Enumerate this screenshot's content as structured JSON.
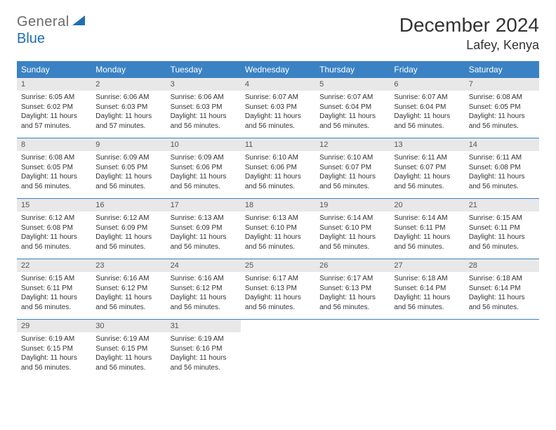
{
  "brand": {
    "name_gray": "General",
    "name_blue": "Blue"
  },
  "title": "December 2024",
  "location": "Lafey, Kenya",
  "colors": {
    "header_bg": "#3b82c4",
    "header_text": "#ffffff",
    "daynum_bg": "#e8e8e8",
    "row_divider": "#3b82c4",
    "body_text": "#333333",
    "logo_gray": "#6a6a6a",
    "logo_blue": "#1f6fb2"
  },
  "weekdays": [
    "Sunday",
    "Monday",
    "Tuesday",
    "Wednesday",
    "Thursday",
    "Friday",
    "Saturday"
  ],
  "weeks": [
    [
      {
        "n": "1",
        "sr": "Sunrise: 6:05 AM",
        "ss": "Sunset: 6:02 PM",
        "dl": "Daylight: 11 hours and 57 minutes."
      },
      {
        "n": "2",
        "sr": "Sunrise: 6:06 AM",
        "ss": "Sunset: 6:03 PM",
        "dl": "Daylight: 11 hours and 57 minutes."
      },
      {
        "n": "3",
        "sr": "Sunrise: 6:06 AM",
        "ss": "Sunset: 6:03 PM",
        "dl": "Daylight: 11 hours and 56 minutes."
      },
      {
        "n": "4",
        "sr": "Sunrise: 6:07 AM",
        "ss": "Sunset: 6:03 PM",
        "dl": "Daylight: 11 hours and 56 minutes."
      },
      {
        "n": "5",
        "sr": "Sunrise: 6:07 AM",
        "ss": "Sunset: 6:04 PM",
        "dl": "Daylight: 11 hours and 56 minutes."
      },
      {
        "n": "6",
        "sr": "Sunrise: 6:07 AM",
        "ss": "Sunset: 6:04 PM",
        "dl": "Daylight: 11 hours and 56 minutes."
      },
      {
        "n": "7",
        "sr": "Sunrise: 6:08 AM",
        "ss": "Sunset: 6:05 PM",
        "dl": "Daylight: 11 hours and 56 minutes."
      }
    ],
    [
      {
        "n": "8",
        "sr": "Sunrise: 6:08 AM",
        "ss": "Sunset: 6:05 PM",
        "dl": "Daylight: 11 hours and 56 minutes."
      },
      {
        "n": "9",
        "sr": "Sunrise: 6:09 AM",
        "ss": "Sunset: 6:05 PM",
        "dl": "Daylight: 11 hours and 56 minutes."
      },
      {
        "n": "10",
        "sr": "Sunrise: 6:09 AM",
        "ss": "Sunset: 6:06 PM",
        "dl": "Daylight: 11 hours and 56 minutes."
      },
      {
        "n": "11",
        "sr": "Sunrise: 6:10 AM",
        "ss": "Sunset: 6:06 PM",
        "dl": "Daylight: 11 hours and 56 minutes."
      },
      {
        "n": "12",
        "sr": "Sunrise: 6:10 AM",
        "ss": "Sunset: 6:07 PM",
        "dl": "Daylight: 11 hours and 56 minutes."
      },
      {
        "n": "13",
        "sr": "Sunrise: 6:11 AM",
        "ss": "Sunset: 6:07 PM",
        "dl": "Daylight: 11 hours and 56 minutes."
      },
      {
        "n": "14",
        "sr": "Sunrise: 6:11 AM",
        "ss": "Sunset: 6:08 PM",
        "dl": "Daylight: 11 hours and 56 minutes."
      }
    ],
    [
      {
        "n": "15",
        "sr": "Sunrise: 6:12 AM",
        "ss": "Sunset: 6:08 PM",
        "dl": "Daylight: 11 hours and 56 minutes."
      },
      {
        "n": "16",
        "sr": "Sunrise: 6:12 AM",
        "ss": "Sunset: 6:09 PM",
        "dl": "Daylight: 11 hours and 56 minutes."
      },
      {
        "n": "17",
        "sr": "Sunrise: 6:13 AM",
        "ss": "Sunset: 6:09 PM",
        "dl": "Daylight: 11 hours and 56 minutes."
      },
      {
        "n": "18",
        "sr": "Sunrise: 6:13 AM",
        "ss": "Sunset: 6:10 PM",
        "dl": "Daylight: 11 hours and 56 minutes."
      },
      {
        "n": "19",
        "sr": "Sunrise: 6:14 AM",
        "ss": "Sunset: 6:10 PM",
        "dl": "Daylight: 11 hours and 56 minutes."
      },
      {
        "n": "20",
        "sr": "Sunrise: 6:14 AM",
        "ss": "Sunset: 6:11 PM",
        "dl": "Daylight: 11 hours and 56 minutes."
      },
      {
        "n": "21",
        "sr": "Sunrise: 6:15 AM",
        "ss": "Sunset: 6:11 PM",
        "dl": "Daylight: 11 hours and 56 minutes."
      }
    ],
    [
      {
        "n": "22",
        "sr": "Sunrise: 6:15 AM",
        "ss": "Sunset: 6:11 PM",
        "dl": "Daylight: 11 hours and 56 minutes."
      },
      {
        "n": "23",
        "sr": "Sunrise: 6:16 AM",
        "ss": "Sunset: 6:12 PM",
        "dl": "Daylight: 11 hours and 56 minutes."
      },
      {
        "n": "24",
        "sr": "Sunrise: 6:16 AM",
        "ss": "Sunset: 6:12 PM",
        "dl": "Daylight: 11 hours and 56 minutes."
      },
      {
        "n": "25",
        "sr": "Sunrise: 6:17 AM",
        "ss": "Sunset: 6:13 PM",
        "dl": "Daylight: 11 hours and 56 minutes."
      },
      {
        "n": "26",
        "sr": "Sunrise: 6:17 AM",
        "ss": "Sunset: 6:13 PM",
        "dl": "Daylight: 11 hours and 56 minutes."
      },
      {
        "n": "27",
        "sr": "Sunrise: 6:18 AM",
        "ss": "Sunset: 6:14 PM",
        "dl": "Daylight: 11 hours and 56 minutes."
      },
      {
        "n": "28",
        "sr": "Sunrise: 6:18 AM",
        "ss": "Sunset: 6:14 PM",
        "dl": "Daylight: 11 hours and 56 minutes."
      }
    ],
    [
      {
        "n": "29",
        "sr": "Sunrise: 6:19 AM",
        "ss": "Sunset: 6:15 PM",
        "dl": "Daylight: 11 hours and 56 minutes."
      },
      {
        "n": "30",
        "sr": "Sunrise: 6:19 AM",
        "ss": "Sunset: 6:15 PM",
        "dl": "Daylight: 11 hours and 56 minutes."
      },
      {
        "n": "31",
        "sr": "Sunrise: 6:19 AM",
        "ss": "Sunset: 6:16 PM",
        "dl": "Daylight: 11 hours and 56 minutes."
      },
      null,
      null,
      null,
      null
    ]
  ]
}
